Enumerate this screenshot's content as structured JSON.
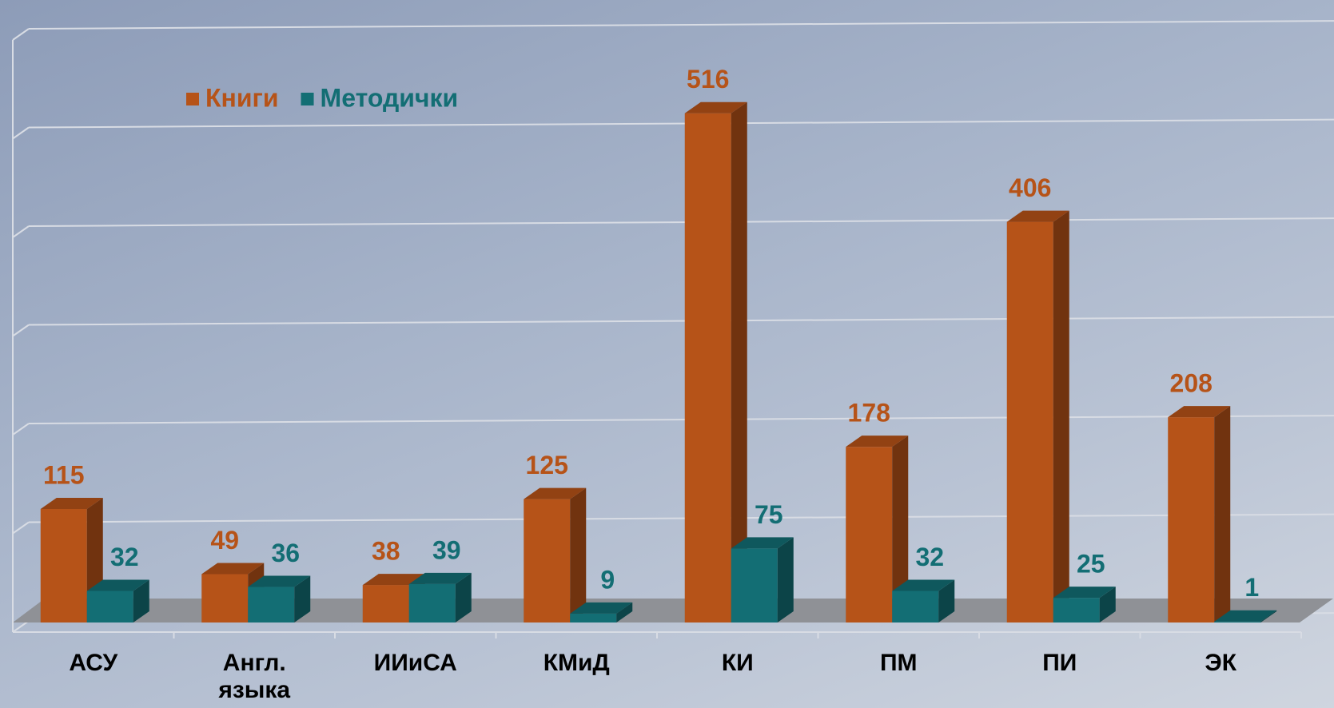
{
  "chart_data": {
    "type": "bar3d",
    "categories": [
      "АСУ",
      "Англ. языка",
      "ИИиСА",
      "КМиД",
      "КИ",
      "ПМ",
      "ПИ",
      "ЭК"
    ],
    "series": [
      {
        "name": "Книги",
        "color": "#b65318",
        "values": [
          115,
          49,
          38,
          125,
          516,
          178,
          406,
          208
        ]
      },
      {
        "name": "Методички",
        "color": "#136e74",
        "values": [
          32,
          36,
          39,
          9,
          75,
          32,
          25,
          1
        ]
      }
    ],
    "ylim": [
      0,
      600
    ],
    "yticks": [
      0,
      100,
      200,
      300,
      400,
      500,
      600
    ],
    "grid": true,
    "legend": "top-left"
  }
}
